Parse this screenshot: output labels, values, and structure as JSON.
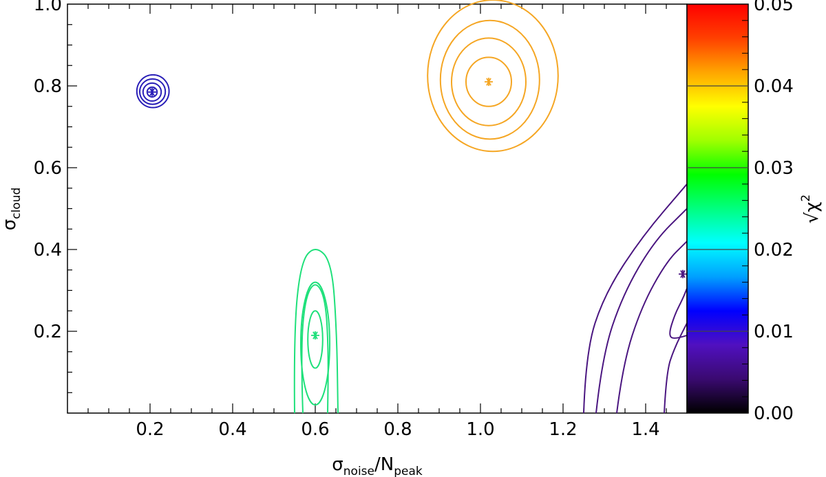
{
  "chart_data": {
    "type": "contour",
    "xlabel": {
      "base": "σ",
      "sub": "noise",
      "sep": "/N",
      "sub2": "peak"
    },
    "ylabel": {
      "base": "σ",
      "sub": "cloud"
    },
    "xlim": [
      0.0,
      1.5
    ],
    "ylim": [
      0.0,
      1.0
    ],
    "x_ticks": [
      "0.2",
      "0.4",
      "0.6",
      "0.8",
      "1.0",
      "1.2",
      "1.4"
    ],
    "x_tick_values": [
      0.2,
      0.4,
      0.6,
      0.8,
      1.0,
      1.2,
      1.4
    ],
    "y_ticks": [
      "0.2",
      "0.4",
      "0.6",
      "0.8",
      "1.0"
    ],
    "y_tick_values": [
      0.2,
      0.4,
      0.6,
      0.8,
      1.0
    ],
    "colorbar": {
      "label_base": "√χ",
      "label_sup": "2",
      "range": [
        0.0,
        0.05
      ],
      "ticks": [
        "0.00",
        "0.01",
        "0.02",
        "0.03",
        "0.04",
        "0.05"
      ],
      "tick_values": [
        0.0,
        0.01,
        0.02,
        0.03,
        0.04,
        0.05
      ],
      "gradient": [
        "#000000",
        "#3a0a70",
        "#5010c0",
        "#0000ff",
        "#00a0ff",
        "#00ffff",
        "#00ff80",
        "#00ff00",
        "#a0ff00",
        "#ffff00",
        "#ffa500",
        "#ff4000",
        "#ff0000"
      ]
    },
    "series": [
      {
        "color": "#2a1fb8",
        "minimum": {
          "x": 0.205,
          "y": 0.785
        },
        "contours": [
          {
            "cx": 0.205,
            "cy": 0.785,
            "rx": 0.012,
            "ry": 0.012
          },
          {
            "cx": 0.205,
            "cy": 0.785,
            "rx": 0.022,
            "ry": 0.022
          },
          {
            "cx": 0.206,
            "cy": 0.786,
            "rx": 0.031,
            "ry": 0.031
          },
          {
            "cx": 0.207,
            "cy": 0.787,
            "rx": 0.039,
            "ry": 0.04
          }
        ]
      },
      {
        "color": "#f5a623",
        "minimum": {
          "x": 1.02,
          "y": 0.81
        },
        "contours": [
          {
            "cx": 1.02,
            "cy": 0.81,
            "rx": 0.055,
            "ry": 0.06
          },
          {
            "cx": 1.02,
            "cy": 0.81,
            "rx": 0.09,
            "ry": 0.107
          },
          {
            "cx": 1.023,
            "cy": 0.815,
            "rx": 0.12,
            "ry": 0.145
          },
          {
            "cx": 1.03,
            "cy": 0.825,
            "rx": 0.158,
            "ry": 0.185
          }
        ]
      },
      {
        "color": "#1ee07a",
        "minimum": {
          "x": 0.6,
          "y": 0.19
        },
        "contours": [
          {
            "cx": 0.6,
            "cy": 0.18,
            "rx": 0.018,
            "ry": 0.07
          },
          {
            "cx": 0.6,
            "cy": 0.17,
            "rx": 0.035,
            "ry": 0.15
          }
        ],
        "open_contours": [
          [
            [
              0.57,
              0.0
            ],
            [
              0.565,
              0.15
            ],
            [
              0.575,
              0.28
            ],
            [
              0.6,
              0.325
            ],
            [
              0.625,
              0.28
            ],
            [
              0.632,
              0.15
            ],
            [
              0.63,
              0.0
            ]
          ],
          [
            [
              0.55,
              0.0
            ],
            [
              0.548,
              0.2
            ],
            [
              0.565,
              0.37
            ],
            [
              0.6,
              0.41
            ],
            [
              0.64,
              0.37
            ],
            [
              0.652,
              0.2
            ],
            [
              0.655,
              0.0
            ]
          ]
        ]
      },
      {
        "color": "#4a1580",
        "minimum": {
          "x": 1.49,
          "y": 0.34
        },
        "open_contours": [
          [
            [
              1.5,
              0.19
            ],
            [
              1.47,
              0.18
            ],
            [
              1.455,
              0.19
            ],
            [
              1.47,
              0.24
            ],
            [
              1.49,
              0.28
            ],
            [
              1.5,
              0.305
            ]
          ],
          [
            [
              1.445,
              0.0
            ],
            [
              1.45,
              0.1
            ],
            [
              1.47,
              0.16
            ],
            [
              1.5,
              0.22
            ]
          ],
          [
            [
              1.33,
              0.0
            ],
            [
              1.345,
              0.12
            ],
            [
              1.39,
              0.26
            ],
            [
              1.45,
              0.37
            ],
            [
              1.5,
              0.42
            ]
          ],
          [
            [
              1.28,
              0.0
            ],
            [
              1.295,
              0.14
            ],
            [
              1.345,
              0.29
            ],
            [
              1.42,
              0.42
            ],
            [
              1.5,
              0.5
            ]
          ],
          [
            [
              1.25,
              0.0
            ],
            [
              1.255,
              0.15
            ],
            [
              1.3,
              0.29
            ],
            [
              1.39,
              0.43
            ],
            [
              1.5,
              0.56
            ]
          ]
        ]
      }
    ]
  }
}
